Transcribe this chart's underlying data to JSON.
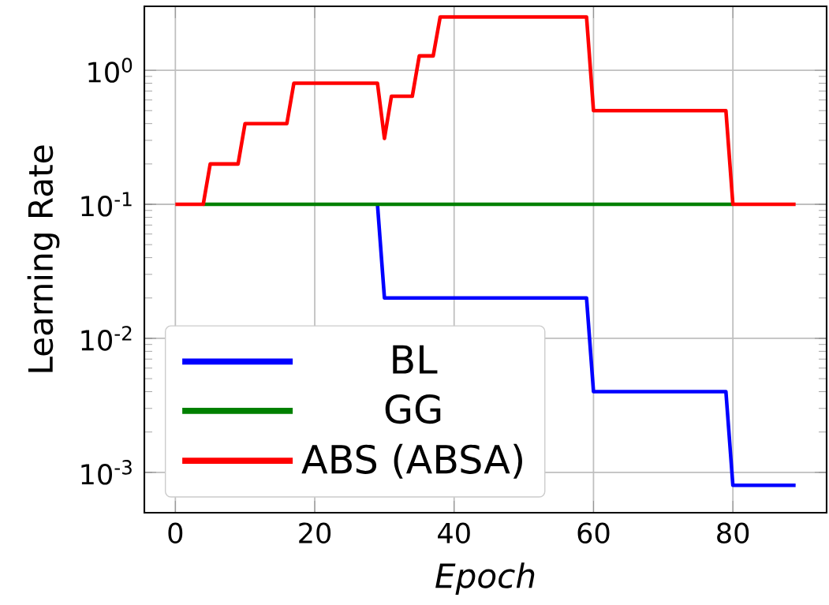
{
  "chart_data": {
    "type": "line",
    "xlabel": "Epoch",
    "ylabel": "Learning Rate",
    "log": "y",
    "grid": true,
    "legend": "bottom left",
    "marker": "none",
    "line_style": "solid",
    "xlim": [
      -4.45,
      93.45
    ],
    "ylim": [
      0.0005,
      3
    ],
    "xticks": [
      0,
      20,
      40,
      60,
      80
    ],
    "yticks": [
      {
        "value": 0.001,
        "label": "10$^{-3}$"
      },
      {
        "value": 0.01,
        "label": "10$^{-2}$"
      },
      {
        "value": 0.1,
        "label": "10$^{-1}$"
      },
      {
        "value": 1,
        "label": "10$^{0}$"
      }
    ],
    "series": [
      {
        "name": "BL",
        "color": "#0000ff",
        "x": [
          29,
          30,
          59,
          60,
          79,
          80,
          89
        ],
        "values": [
          0.1,
          0.02,
          0.02,
          0.004,
          0.004,
          0.0008,
          0.0008
        ]
      },
      {
        "name": "GG",
        "color": "#008000",
        "x": [
          4,
          80
        ],
        "values": [
          0.1,
          0.1
        ]
      },
      {
        "name": "ABS (ABSA)",
        "color": "#ff0000",
        "x": [
          0,
          4,
          5,
          9,
          10,
          16,
          17,
          29,
          30,
          31,
          34,
          35,
          37,
          38,
          59,
          60,
          79,
          80,
          89
        ],
        "values": [
          0.1,
          0.1,
          0.2,
          0.2,
          0.4,
          0.4,
          0.8,
          0.8,
          0.31,
          0.64,
          0.64,
          1.28,
          1.28,
          2.5,
          2.5,
          0.5,
          0.5,
          0.1,
          0.1
        ]
      }
    ]
  }
}
